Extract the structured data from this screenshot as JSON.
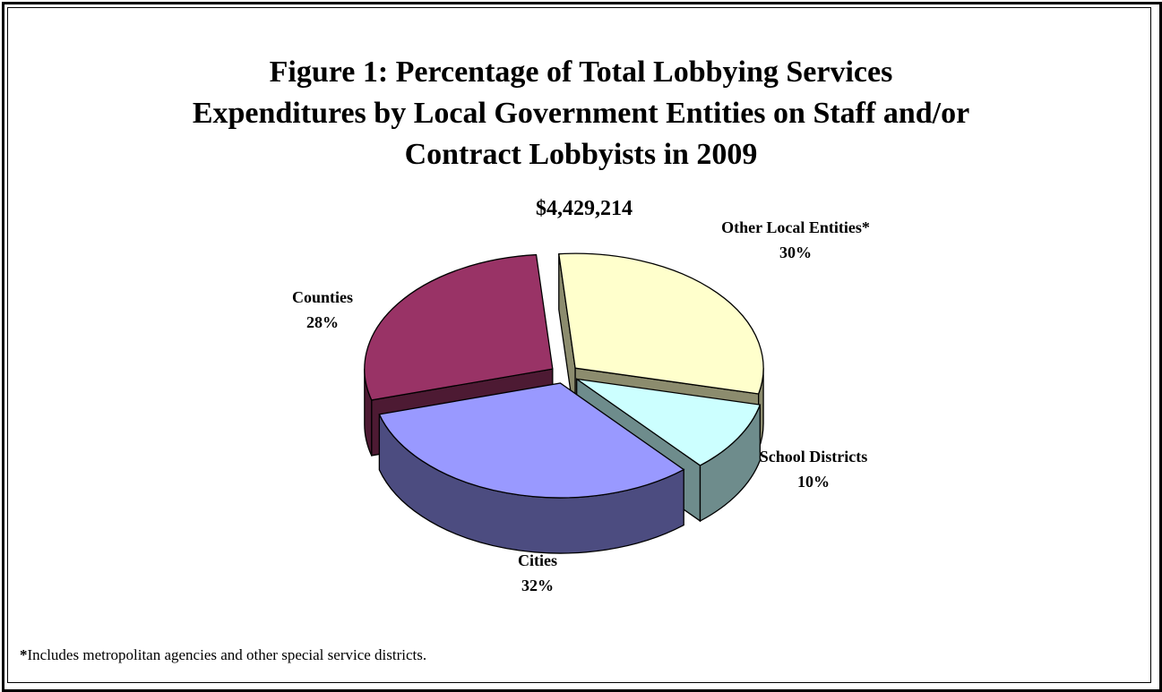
{
  "chart_data": {
    "type": "pie",
    "title_lines": [
      "Figure 1:  Percentage of Total Lobbying Services",
      "Expenditures by Local Government Entities on Staff and/or",
      "Contract Lobbyists in 2009"
    ],
    "subtitle": "$4,429,214",
    "slices": [
      {
        "label": "Other Local Entities*",
        "percent_label": "30%",
        "value": 30,
        "color": "#FFFFCC",
        "side_color": "#8C8C6E"
      },
      {
        "label": "School Districts",
        "percent_label": "10%",
        "value": 10,
        "color": "#CCFFFF",
        "side_color": "#6E8C8C"
      },
      {
        "label": "Cities",
        "percent_label": "32%",
        "value": 32,
        "color": "#9999FF",
        "side_color": "#4C4C80"
      },
      {
        "label": "Counties",
        "percent_label": "28%",
        "value": 28,
        "color": "#993366",
        "side_color": "#4D1A33"
      }
    ],
    "style": "3d-exploded",
    "legend": "none"
  },
  "footnote": {
    "marker": "*",
    "text": "Includes metropolitan agencies and other special service districts."
  }
}
